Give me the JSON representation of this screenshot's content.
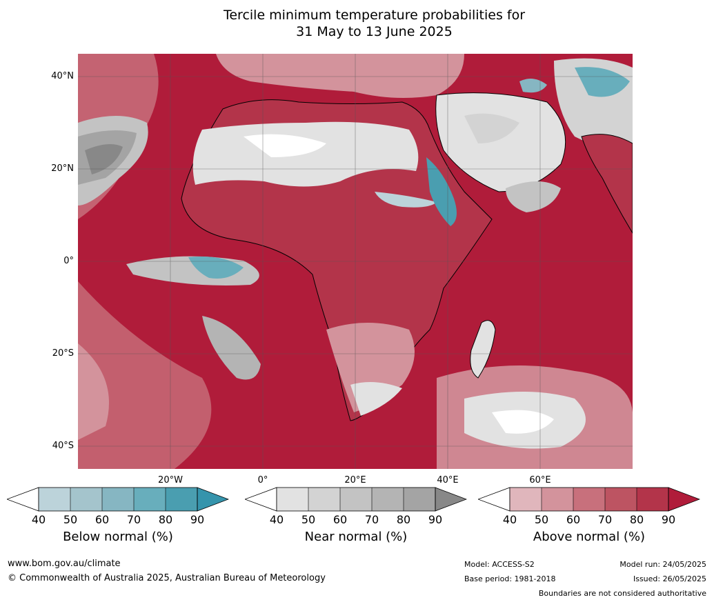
{
  "title_line1": "Tercile minimum temperature probabilities for",
  "title_line2": "31 May to 13 June 2025",
  "lat_labels": [
    "40°N",
    "20°N",
    "0°",
    "20°S",
    "40°S"
  ],
  "lon_labels": [
    "20°W",
    "0°",
    "20°E",
    "40°E",
    "60°E"
  ],
  "legends": [
    {
      "title": "Below normal (%)",
      "ticks": [
        "40",
        "50",
        "60",
        "70",
        "80",
        "90"
      ],
      "colors": [
        "#bcd3da",
        "#a4c4cc",
        "#86b6c2",
        "#68aebc",
        "#4a9eb0",
        "#3594ac"
      ]
    },
    {
      "title": "Near normal (%)",
      "ticks": [
        "40",
        "50",
        "60",
        "70",
        "80",
        "90"
      ],
      "colors": [
        "#e2e2e2",
        "#d3d3d3",
        "#c3c3c3",
        "#b4b4b4",
        "#a4a4a4",
        "#888888"
      ]
    },
    {
      "title": "Above normal (%)",
      "ticks": [
        "40",
        "50",
        "60",
        "70",
        "80",
        "90"
      ],
      "colors": [
        "#e0b6bc",
        "#d3939c",
        "#c8707c",
        "#bd5462",
        "#b3344a",
        "#b01c3a"
      ]
    }
  ],
  "footer": {
    "url": "www.bom.gov.au/climate",
    "copyright": "© Commonwealth of Australia 2025, Australian Bureau of Meteorology",
    "model": "Model: ACCESS-S2",
    "base_period": "Base period: 1981-2018",
    "model_run": "Model run: 24/05/2025",
    "issued": "Issued: 26/05/2025",
    "boundaries_note": "Boundaries are not considered authoritative"
  },
  "colors": {
    "ocean_dominant": "#b01c3a",
    "border": "#808080",
    "coast": "#000000"
  }
}
